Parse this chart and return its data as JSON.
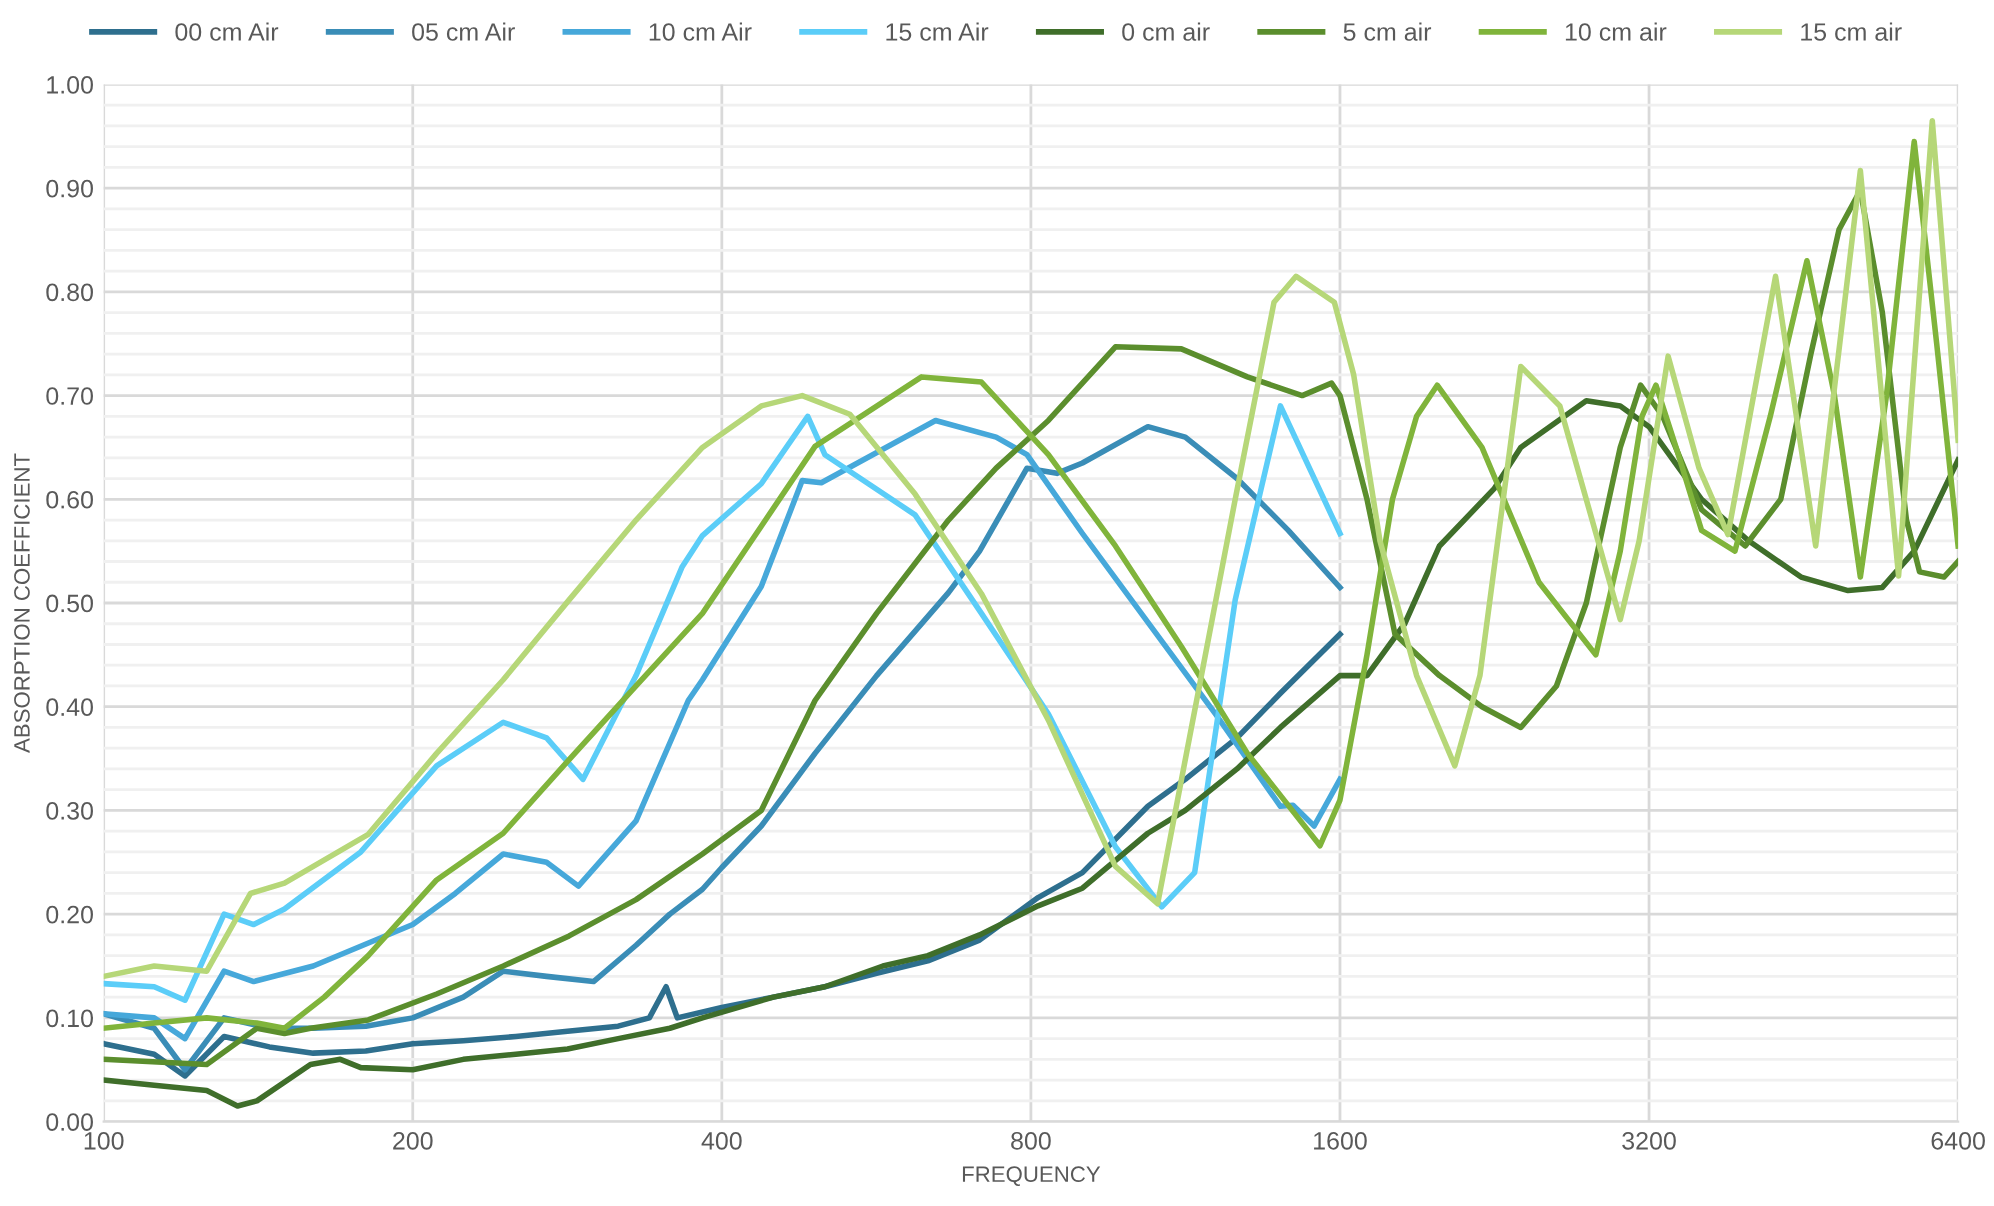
{
  "chart_data": {
    "type": "line",
    "xlabel": "FREQUENCY",
    "ylabel": "ABSORPTION COEFFICIENT",
    "log": "x",
    "grid": true,
    "legend": "top",
    "line_style": "solid",
    "marker": "none",
    "xlim": [
      100,
      6400
    ],
    "xticks": [
      100,
      200,
      400,
      800,
      1600,
      3200,
      6400
    ],
    "ylim": [
      0,
      1
    ],
    "yticks": [
      {
        "value": 0,
        "label": "0.00"
      },
      {
        "value": 0.1,
        "label": "0.10"
      },
      {
        "value": 0.2,
        "label": "0.20"
      },
      {
        "value": 0.3,
        "label": "0.30"
      },
      {
        "value": 0.4,
        "label": "0.40"
      },
      {
        "value": 0.5,
        "label": "0.50"
      },
      {
        "value": 0.6,
        "label": "0.60"
      },
      {
        "value": 0.7,
        "label": "0.70"
      },
      {
        "value": 0.8,
        "label": "0.80"
      },
      {
        "value": 0.9,
        "label": "0.90"
      },
      {
        "value": 1,
        "label": "1.00"
      }
    ],
    "series": [
      {
        "name": "00 cm Air",
        "color": "#2e6f8e",
        "x": [
          100,
          112,
          120,
          131,
          145,
          160,
          180,
          200,
          224,
          252,
          283,
          317,
          340,
          353,
          362,
          400,
          449,
          504,
          566,
          635,
          713,
          813,
          898,
          1040,
          1131,
          1270,
          1400,
          1600
        ],
        "values": [
          0.075,
          0.065,
          0.044,
          0.082,
          0.072,
          0.066,
          0.068,
          0.075,
          0.078,
          0.082,
          0.087,
          0.092,
          0.1,
          0.13,
          0.1,
          0.11,
          0.12,
          0.13,
          0.143,
          0.155,
          0.175,
          0.216,
          0.24,
          0.304,
          0.33,
          0.37,
          0.413,
          0.47
        ]
      },
      {
        "name": "05 cm Air",
        "color": "#3a8db7",
        "x": [
          100,
          112,
          120,
          131,
          145,
          160,
          180,
          200,
          224,
          245,
          270,
          300,
          330,
          356,
          383,
          400,
          437,
          493,
          566,
          665,
          713,
          793,
          848,
          898,
          1040,
          1131,
          1270,
          1425,
          1600
        ],
        "values": [
          0.104,
          0.09,
          0.05,
          0.1,
          0.09,
          0.09,
          0.092,
          0.1,
          0.12,
          0.145,
          0.14,
          0.135,
          0.17,
          0.2,
          0.224,
          0.245,
          0.285,
          0.355,
          0.43,
          0.51,
          0.55,
          0.63,
          0.625,
          0.635,
          0.67,
          0.66,
          0.62,
          0.57,
          0.515
        ]
      },
      {
        "name": "10 cm Air",
        "color": "#46a8da",
        "x": [
          100,
          112,
          120,
          131,
          140,
          160,
          200,
          220,
          245,
          270,
          290,
          330,
          371,
          383,
          437,
          479,
          500,
          646,
          740,
          793,
          898,
          1210,
          1400,
          1440,
          1510,
          1600
        ],
        "values": [
          0.104,
          0.1,
          0.08,
          0.145,
          0.135,
          0.15,
          0.19,
          0.22,
          0.258,
          0.25,
          0.227,
          0.29,
          0.406,
          0.426,
          0.516,
          0.618,
          0.616,
          0.676,
          0.66,
          0.643,
          0.567,
          0.393,
          0.304,
          0.305,
          0.285,
          0.33
        ]
      },
      {
        "name": "15 cm Air",
        "color": "#5bcdf8",
        "x": [
          100,
          112,
          120,
          131,
          140,
          150,
          178,
          211,
          245,
          270,
          293,
          330,
          366,
          383,
          437,
          485,
          504,
          617,
          716,
          832,
          967,
          1073,
          1155,
          1265,
          1400,
          1600
        ],
        "values": [
          0.133,
          0.13,
          0.117,
          0.2,
          0.19,
          0.205,
          0.26,
          0.343,
          0.385,
          0.37,
          0.33,
          0.43,
          0.535,
          0.565,
          0.615,
          0.68,
          0.643,
          0.585,
          0.49,
          0.393,
          0.265,
          0.207,
          0.24,
          0.503,
          0.69,
          0.567
        ]
      },
      {
        "name": "0 cm air",
        "color": "#3f6e2a",
        "x": [
          100,
          112,
          126,
          135,
          141,
          159,
          170,
          178,
          200,
          224,
          252,
          283,
          317,
          356,
          383,
          449,
          504,
          574,
          635,
          713,
          813,
          898,
          1040,
          1131,
          1270,
          1400,
          1600,
          1700,
          1850,
          2000,
          2260,
          2400,
          2780,
          3000,
          3200,
          3600,
          4000,
          4500,
          5000,
          5400,
          5800,
          6400
        ],
        "values": [
          0.04,
          0.035,
          0.03,
          0.015,
          0.02,
          0.055,
          0.06,
          0.052,
          0.05,
          0.06,
          0.065,
          0.07,
          0.08,
          0.09,
          0.1,
          0.12,
          0.13,
          0.15,
          0.16,
          0.18,
          0.208,
          0.225,
          0.278,
          0.3,
          0.34,
          0.38,
          0.43,
          0.43,
          0.48,
          0.555,
          0.61,
          0.65,
          0.695,
          0.69,
          0.67,
          0.6,
          0.56,
          0.525,
          0.512,
          0.515,
          0.55,
          0.638
        ]
      },
      {
        "name": "5 cm air",
        "color": "#5b8e2d",
        "x": [
          100,
          126,
          141,
          150,
          159,
          181,
          211,
          245,
          284,
          330,
          383,
          437,
          493,
          566,
          665,
          740,
          832,
          967,
          1121,
          1300,
          1470,
          1570,
          1600,
          1700,
          1810,
          2000,
          2200,
          2400,
          2600,
          2780,
          3000,
          3140,
          3300,
          3600,
          3970,
          4300,
          4600,
          4900,
          5140,
          5400,
          5700,
          5870,
          6200,
          6400
        ],
        "values": [
          0.06,
          0.055,
          0.09,
          0.085,
          0.09,
          0.098,
          0.123,
          0.15,
          0.179,
          0.214,
          0.258,
          0.3,
          0.406,
          0.49,
          0.58,
          0.63,
          0.676,
          0.747,
          0.745,
          0.718,
          0.7,
          0.712,
          0.7,
          0.6,
          0.47,
          0.43,
          0.4,
          0.38,
          0.42,
          0.5,
          0.65,
          0.71,
          0.68,
          0.59,
          0.555,
          0.6,
          0.74,
          0.86,
          0.898,
          0.78,
          0.58,
          0.53,
          0.525,
          0.54
        ]
      },
      {
        "name": "10 cm air",
        "color": "#80b43b",
        "x": [
          100,
          112,
          126,
          141,
          150,
          164,
          181,
          211,
          245,
          284,
          330,
          383,
          437,
          493,
          626,
          716,
          832,
          967,
          1121,
          1300,
          1530,
          1600,
          1700,
          1800,
          1900,
          1990,
          2200,
          2500,
          2840,
          3000,
          3150,
          3250,
          3400,
          3600,
          3880,
          4200,
          4560,
          4850,
          5140,
          5450,
          5800,
          6100,
          6400
        ],
        "values": [
          0.09,
          0.095,
          0.1,
          0.095,
          0.09,
          0.12,
          0.16,
          0.233,
          0.278,
          0.349,
          0.42,
          0.49,
          0.574,
          0.651,
          0.718,
          0.713,
          0.643,
          0.555,
          0.458,
          0.355,
          0.266,
          0.31,
          0.45,
          0.6,
          0.68,
          0.71,
          0.65,
          0.52,
          0.45,
          0.55,
          0.68,
          0.71,
          0.65,
          0.57,
          0.55,
          0.68,
          0.83,
          0.7,
          0.525,
          0.7,
          0.945,
          0.75,
          0.555
        ]
      },
      {
        "name": "15 cm air",
        "color": "#b6d778",
        "x": [
          100,
          112,
          126,
          139,
          150,
          181,
          211,
          245,
          284,
          330,
          383,
          437,
          479,
          533,
          617,
          716,
          832,
          967,
          1063,
          1265,
          1380,
          1450,
          1580,
          1650,
          1750,
          1900,
          2070,
          2190,
          2400,
          2620,
          3000,
          3130,
          3340,
          3580,
          3820,
          4250,
          4650,
          5140,
          5600,
          6040,
          6400
        ],
        "values": [
          0.14,
          0.15,
          0.145,
          0.22,
          0.23,
          0.277,
          0.355,
          0.426,
          0.503,
          0.58,
          0.65,
          0.69,
          0.7,
          0.682,
          0.605,
          0.509,
          0.387,
          0.246,
          0.21,
          0.6,
          0.79,
          0.815,
          0.79,
          0.72,
          0.56,
          0.43,
          0.343,
          0.43,
          0.728,
          0.69,
          0.484,
          0.56,
          0.738,
          0.63,
          0.566,
          0.815,
          0.555,
          0.917,
          0.526,
          0.965,
          0.657
        ]
      }
    ]
  }
}
